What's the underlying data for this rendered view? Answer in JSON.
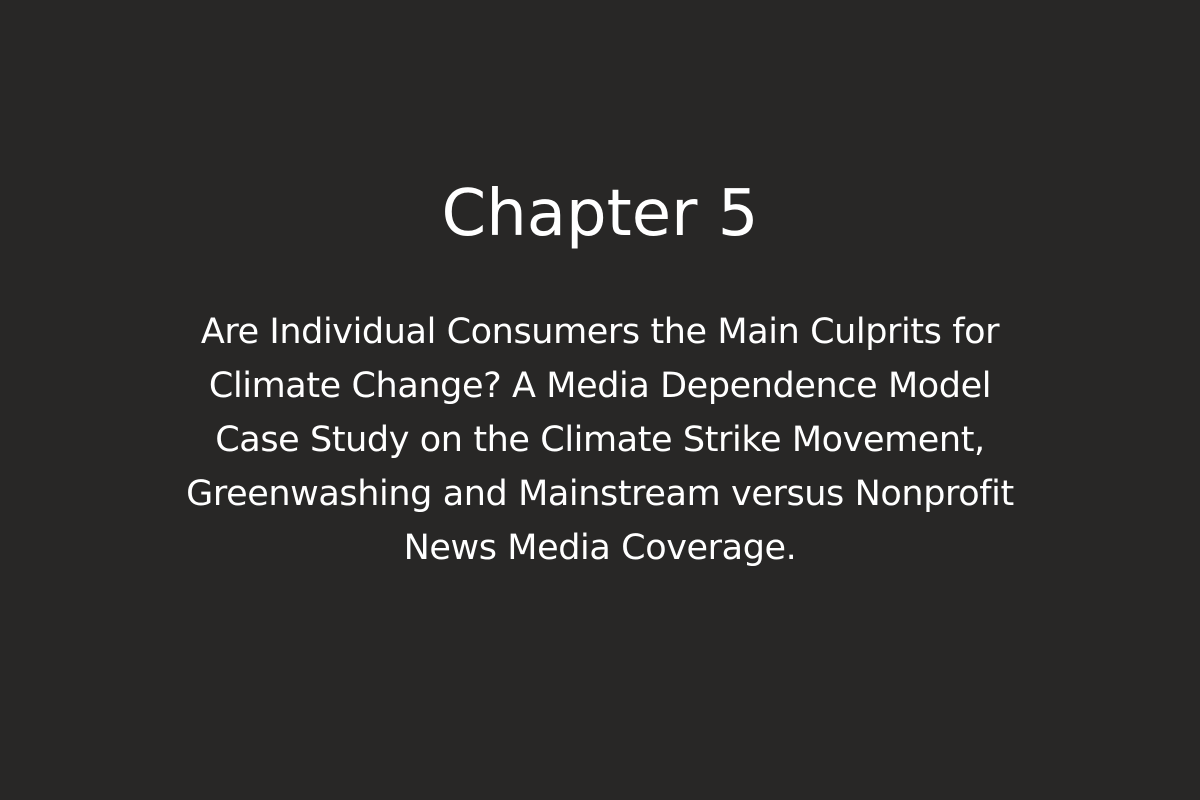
{
  "chapter": {
    "heading": "Chapter 5",
    "title_lines": [
      "Are Individual Consumers the Main Culprits for",
      "Climate Change? A Media Dependence Model",
      "Case Study on the Climate Strike Movement,",
      "Greenwashing and Mainstream versus Nonprofit",
      "News Media Coverage."
    ]
  },
  "colors": {
    "background": "#282726",
    "text": "#ffffff"
  }
}
